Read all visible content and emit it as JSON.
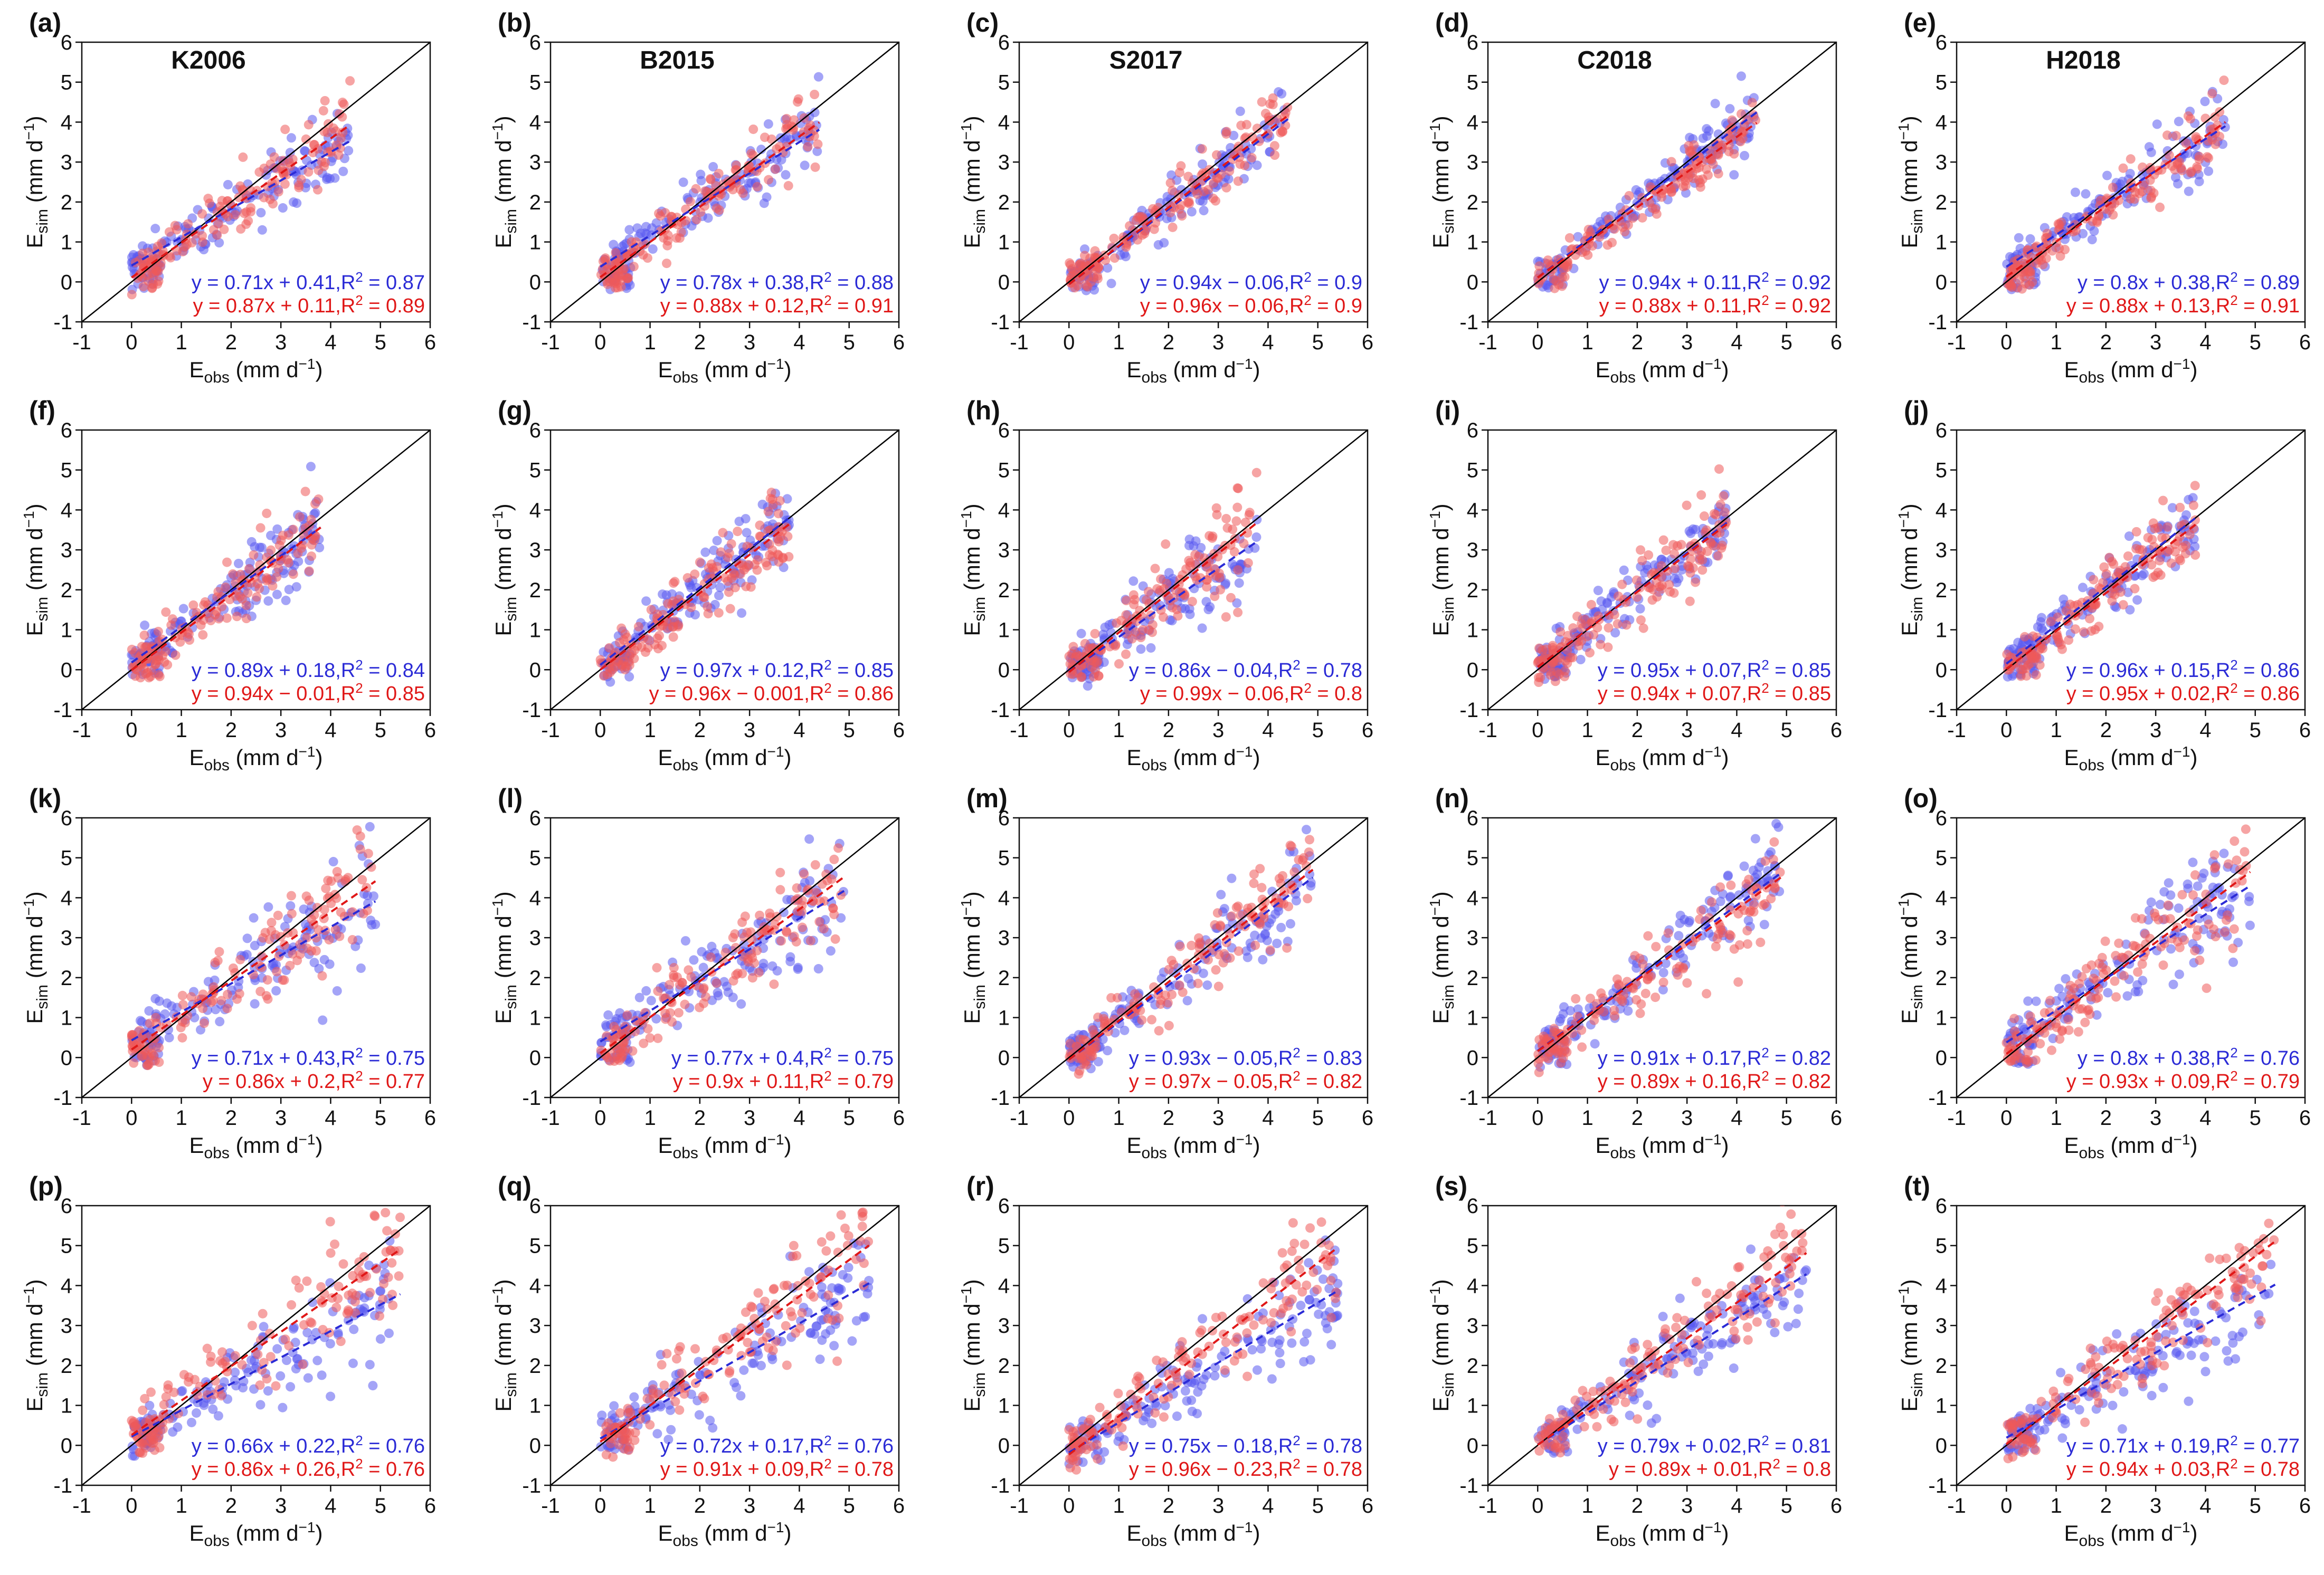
{
  "figure": {
    "x_axis_label": "E",
    "x_axis_sub": "obs",
    "x_axis_unit": " (mm d",
    "y_axis_label": "E",
    "y_axis_sub": "sim",
    "y_axis_unit": " (mm d",
    "unit_exp": "−1",
    "unit_close": ")",
    "colors": {
      "blue": "#2b2bd6",
      "red": "#e01818",
      "blue_fill": "#5a5af0",
      "red_fill": "#ef5a5a",
      "one_to_one": "#000000"
    }
  },
  "chart_data": [
    {
      "type": "scatter",
      "panel": "(a)",
      "title": "K2006",
      "xlim": [
        -1,
        6
      ],
      "ylim": [
        -1,
        6
      ],
      "xticks": [
        "-1",
        "0",
        "1",
        "2",
        "3",
        "4",
        "5",
        "6"
      ],
      "yticks": [
        "-1",
        "0",
        "1",
        "2",
        "3",
        "4",
        "5",
        "6"
      ],
      "x_max": 4.4,
      "series": [
        {
          "name": "blue",
          "slope": 0.71,
          "intercept": 0.41,
          "r2": 0.87,
          "label": "y = 0.71x + 0.41,R",
          "r2_label": " = 0.87"
        },
        {
          "name": "red",
          "slope": 0.87,
          "intercept": 0.11,
          "r2": 0.89,
          "label": "y = 0.87x + 0.11,R",
          "r2_label": " = 0.89"
        }
      ]
    },
    {
      "type": "scatter",
      "panel": "(b)",
      "title": "B2015",
      "xlim": [
        -1,
        6
      ],
      "ylim": [
        -1,
        6
      ],
      "xticks": [
        "-1",
        "0",
        "1",
        "2",
        "3",
        "4",
        "5",
        "6"
      ],
      "yticks": [
        "-1",
        "0",
        "1",
        "2",
        "3",
        "4",
        "5",
        "6"
      ],
      "x_max": 4.4,
      "series": [
        {
          "name": "blue",
          "slope": 0.78,
          "intercept": 0.38,
          "r2": 0.88,
          "label": "y = 0.78x + 0.38,R",
          "r2_label": " = 0.88"
        },
        {
          "name": "red",
          "slope": 0.88,
          "intercept": 0.12,
          "r2": 0.91,
          "label": "y = 0.88x + 0.12,R",
          "r2_label": " = 0.91"
        }
      ]
    },
    {
      "type": "scatter",
      "panel": "(c)",
      "title": "S2017",
      "xlim": [
        -1,
        6
      ],
      "ylim": [
        -1,
        6
      ],
      "xticks": [
        "-1",
        "0",
        "1",
        "2",
        "3",
        "4",
        "5",
        "6"
      ],
      "yticks": [
        "-1",
        "0",
        "1",
        "2",
        "3",
        "4",
        "5",
        "6"
      ],
      "x_max": 4.4,
      "series": [
        {
          "name": "blue",
          "slope": 0.94,
          "intercept": -0.06,
          "r2": 0.9,
          "label": "y = 0.94x − 0.06,R",
          "r2_label": " = 0.9"
        },
        {
          "name": "red",
          "slope": 0.96,
          "intercept": -0.06,
          "r2": 0.9,
          "label": "y = 0.96x − 0.06,R",
          "r2_label": " = 0.9"
        }
      ]
    },
    {
      "type": "scatter",
      "panel": "(d)",
      "title": "C2018",
      "xlim": [
        -1,
        6
      ],
      "ylim": [
        -1,
        6
      ],
      "xticks": [
        "-1",
        "0",
        "1",
        "2",
        "3",
        "4",
        "5",
        "6"
      ],
      "yticks": [
        "-1",
        "0",
        "1",
        "2",
        "3",
        "4",
        "5",
        "6"
      ],
      "x_max": 4.4,
      "series": [
        {
          "name": "blue",
          "slope": 0.94,
          "intercept": 0.11,
          "r2": 0.92,
          "label": "y = 0.94x + 0.11,R",
          "r2_label": " = 0.92"
        },
        {
          "name": "red",
          "slope": 0.88,
          "intercept": 0.11,
          "r2": 0.92,
          "label": "y = 0.88x + 0.11,R",
          "r2_label": " = 0.92"
        }
      ]
    },
    {
      "type": "scatter",
      "panel": "(e)",
      "title": "H2018",
      "xlim": [
        -1,
        6
      ],
      "ylim": [
        -1,
        6
      ],
      "xticks": [
        "-1",
        "0",
        "1",
        "2",
        "3",
        "4",
        "5",
        "6"
      ],
      "yticks": [
        "-1",
        "0",
        "1",
        "2",
        "3",
        "4",
        "5",
        "6"
      ],
      "x_max": 4.4,
      "series": [
        {
          "name": "blue",
          "slope": 0.8,
          "intercept": 0.38,
          "r2": 0.89,
          "label": "y = 0.8x + 0.38,R",
          "r2_label": " = 0.89"
        },
        {
          "name": "red",
          "slope": 0.88,
          "intercept": 0.13,
          "r2": 0.91,
          "label": "y = 0.88x + 0.13,R",
          "r2_label": " = 0.91"
        }
      ]
    },
    {
      "type": "scatter",
      "panel": "(f)",
      "title": "",
      "xlim": [
        -1,
        6
      ],
      "ylim": [
        -1,
        6
      ],
      "xticks": [
        "-1",
        "0",
        "1",
        "2",
        "3",
        "4",
        "5",
        "6"
      ],
      "yticks": [
        "-1",
        "0",
        "1",
        "2",
        "3",
        "4",
        "5",
        "6"
      ],
      "x_max": 3.8,
      "series": [
        {
          "name": "blue",
          "slope": 0.89,
          "intercept": 0.18,
          "r2": 0.84,
          "label": "y = 0.89x + 0.18,R",
          "r2_label": " = 0.84"
        },
        {
          "name": "red",
          "slope": 0.94,
          "intercept": -0.01,
          "r2": 0.85,
          "label": "y = 0.94x − 0.01,R",
          "r2_label": " = 0.85"
        }
      ]
    },
    {
      "type": "scatter",
      "panel": "(g)",
      "title": "",
      "xlim": [
        -1,
        6
      ],
      "ylim": [
        -1,
        6
      ],
      "xticks": [
        "-1",
        "0",
        "1",
        "2",
        "3",
        "4",
        "5",
        "6"
      ],
      "yticks": [
        "-1",
        "0",
        "1",
        "2",
        "3",
        "4",
        "5",
        "6"
      ],
      "x_max": 3.8,
      "series": [
        {
          "name": "blue",
          "slope": 0.97,
          "intercept": 0.12,
          "r2": 0.85,
          "label": "y = 0.97x + 0.12,R",
          "r2_label": " = 0.85"
        },
        {
          "name": "red",
          "slope": 0.96,
          "intercept": -0.001,
          "r2": 0.86,
          "label": "y = 0.96x − 0.001,R",
          "r2_label": " = 0.86"
        }
      ]
    },
    {
      "type": "scatter",
      "panel": "(h)",
      "title": "",
      "xlim": [
        -1,
        6
      ],
      "ylim": [
        -1,
        6
      ],
      "xticks": [
        "-1",
        "0",
        "1",
        "2",
        "3",
        "4",
        "5",
        "6"
      ],
      "yticks": [
        "-1",
        "0",
        "1",
        "2",
        "3",
        "4",
        "5",
        "6"
      ],
      "x_max": 3.8,
      "series": [
        {
          "name": "blue",
          "slope": 0.86,
          "intercept": -0.04,
          "r2": 0.78,
          "label": "y = 0.86x − 0.04,R",
          "r2_label": " = 0.78"
        },
        {
          "name": "red",
          "slope": 0.99,
          "intercept": -0.06,
          "r2": 0.8,
          "label": "y = 0.99x − 0.06,R",
          "r2_label": " = 0.8"
        }
      ]
    },
    {
      "type": "scatter",
      "panel": "(i)",
      "title": "",
      "xlim": [
        -1,
        6
      ],
      "ylim": [
        -1,
        6
      ],
      "xticks": [
        "-1",
        "0",
        "1",
        "2",
        "3",
        "4",
        "5",
        "6"
      ],
      "yticks": [
        "-1",
        "0",
        "1",
        "2",
        "3",
        "4",
        "5",
        "6"
      ],
      "x_max": 3.8,
      "series": [
        {
          "name": "blue",
          "slope": 0.95,
          "intercept": 0.07,
          "r2": 0.85,
          "label": "y = 0.95x + 0.07,R",
          "r2_label": " = 0.85"
        },
        {
          "name": "red",
          "slope": 0.94,
          "intercept": 0.07,
          "r2": 0.85,
          "label": "y = 0.94x + 0.07,R",
          "r2_label": " = 0.85"
        }
      ]
    },
    {
      "type": "scatter",
      "panel": "(j)",
      "title": "",
      "xlim": [
        -1,
        6
      ],
      "ylim": [
        -1,
        6
      ],
      "xticks": [
        "-1",
        "0",
        "1",
        "2",
        "3",
        "4",
        "5",
        "6"
      ],
      "yticks": [
        "-1",
        "0",
        "1",
        "2",
        "3",
        "4",
        "5",
        "6"
      ],
      "x_max": 3.8,
      "series": [
        {
          "name": "blue",
          "slope": 0.96,
          "intercept": 0.15,
          "r2": 0.86,
          "label": "y = 0.96x + 0.15,R",
          "r2_label": " = 0.86"
        },
        {
          "name": "red",
          "slope": 0.95,
          "intercept": 0.02,
          "r2": 0.86,
          "label": "y = 0.95x + 0.02,R",
          "r2_label": " = 0.86"
        }
      ]
    },
    {
      "type": "scatter",
      "panel": "(k)",
      "title": "",
      "xlim": [
        -1,
        6
      ],
      "ylim": [
        -1,
        6
      ],
      "xticks": [
        "-1",
        "0",
        "1",
        "2",
        "3",
        "4",
        "5",
        "6"
      ],
      "yticks": [
        "-1",
        "0",
        "1",
        "2",
        "3",
        "4",
        "5",
        "6"
      ],
      "x_max": 4.9,
      "series": [
        {
          "name": "blue",
          "slope": 0.71,
          "intercept": 0.43,
          "r2": 0.75,
          "label": "y = 0.71x + 0.43,R",
          "r2_label": " = 0.75"
        },
        {
          "name": "red",
          "slope": 0.86,
          "intercept": 0.2,
          "r2": 0.77,
          "label": "y = 0.86x + 0.2,R",
          "r2_label": " = 0.77"
        }
      ]
    },
    {
      "type": "scatter",
      "panel": "(l)",
      "title": "",
      "xlim": [
        -1,
        6
      ],
      "ylim": [
        -1,
        6
      ],
      "xticks": [
        "-1",
        "0",
        "1",
        "2",
        "3",
        "4",
        "5",
        "6"
      ],
      "yticks": [
        "-1",
        "0",
        "1",
        "2",
        "3",
        "4",
        "5",
        "6"
      ],
      "x_max": 4.9,
      "series": [
        {
          "name": "blue",
          "slope": 0.77,
          "intercept": 0.4,
          "r2": 0.75,
          "label": "y = 0.77x + 0.4,R",
          "r2_label": " = 0.75"
        },
        {
          "name": "red",
          "slope": 0.9,
          "intercept": 0.11,
          "r2": 0.79,
          "label": "y = 0.9x + 0.11,R",
          "r2_label": " = 0.79"
        }
      ]
    },
    {
      "type": "scatter",
      "panel": "(m)",
      "title": "",
      "xlim": [
        -1,
        6
      ],
      "ylim": [
        -1,
        6
      ],
      "xticks": [
        "-1",
        "0",
        "1",
        "2",
        "3",
        "4",
        "5",
        "6"
      ],
      "yticks": [
        "-1",
        "0",
        "1",
        "2",
        "3",
        "4",
        "5",
        "6"
      ],
      "x_max": 4.9,
      "series": [
        {
          "name": "blue",
          "slope": 0.93,
          "intercept": -0.05,
          "r2": 0.83,
          "label": "y = 0.93x − 0.05,R",
          "r2_label": " = 0.83"
        },
        {
          "name": "red",
          "slope": 0.97,
          "intercept": -0.05,
          "r2": 0.82,
          "label": "y = 0.97x − 0.05,R",
          "r2_label": " = 0.82"
        }
      ]
    },
    {
      "type": "scatter",
      "panel": "(n)",
      "title": "",
      "xlim": [
        -1,
        6
      ],
      "ylim": [
        -1,
        6
      ],
      "xticks": [
        "-1",
        "0",
        "1",
        "2",
        "3",
        "4",
        "5",
        "6"
      ],
      "yticks": [
        "-1",
        "0",
        "1",
        "2",
        "3",
        "4",
        "5",
        "6"
      ],
      "x_max": 4.9,
      "series": [
        {
          "name": "blue",
          "slope": 0.91,
          "intercept": 0.17,
          "r2": 0.82,
          "label": "y = 0.91x + 0.17,R",
          "r2_label": " = 0.82"
        },
        {
          "name": "red",
          "slope": 0.89,
          "intercept": 0.16,
          "r2": 0.82,
          "label": "y = 0.89x + 0.16,R",
          "r2_label": " = 0.82"
        }
      ]
    },
    {
      "type": "scatter",
      "panel": "(o)",
      "title": "",
      "xlim": [
        -1,
        6
      ],
      "ylim": [
        -1,
        6
      ],
      "xticks": [
        "-1",
        "0",
        "1",
        "2",
        "3",
        "4",
        "5",
        "6"
      ],
      "yticks": [
        "-1",
        "0",
        "1",
        "2",
        "3",
        "4",
        "5",
        "6"
      ],
      "x_max": 4.9,
      "series": [
        {
          "name": "blue",
          "slope": 0.8,
          "intercept": 0.38,
          "r2": 0.76,
          "label": "y = 0.8x + 0.38,R",
          "r2_label": " = 0.76"
        },
        {
          "name": "red",
          "slope": 0.93,
          "intercept": 0.09,
          "r2": 0.79,
          "label": "y = 0.93x + 0.09,R",
          "r2_label": " = 0.79"
        }
      ]
    },
    {
      "type": "scatter",
      "panel": "(p)",
      "title": "",
      "xlim": [
        -1,
        6
      ],
      "ylim": [
        -1,
        6
      ],
      "xticks": [
        "-1",
        "0",
        "1",
        "2",
        "3",
        "4",
        "5",
        "6"
      ],
      "yticks": [
        "-1",
        "0",
        "1",
        "2",
        "3",
        "4",
        "5",
        "6"
      ],
      "x_max": 5.4,
      "series": [
        {
          "name": "blue",
          "slope": 0.66,
          "intercept": 0.22,
          "r2": 0.76,
          "label": "y = 0.66x + 0.22,R",
          "r2_label": " = 0.76"
        },
        {
          "name": "red",
          "slope": 0.86,
          "intercept": 0.26,
          "r2": 0.76,
          "label": "y = 0.86x + 0.26,R",
          "r2_label": " = 0.76"
        }
      ]
    },
    {
      "type": "scatter",
      "panel": "(q)",
      "title": "",
      "xlim": [
        -1,
        6
      ],
      "ylim": [
        -1,
        6
      ],
      "xticks": [
        "-1",
        "0",
        "1",
        "2",
        "3",
        "4",
        "5",
        "6"
      ],
      "yticks": [
        "-1",
        "0",
        "1",
        "2",
        "3",
        "4",
        "5",
        "6"
      ],
      "x_max": 5.4,
      "series": [
        {
          "name": "blue",
          "slope": 0.72,
          "intercept": 0.17,
          "r2": 0.76,
          "label": "y = 0.72x + 0.17,R",
          "r2_label": " = 0.76"
        },
        {
          "name": "red",
          "slope": 0.91,
          "intercept": 0.09,
          "r2": 0.78,
          "label": "y = 0.91x + 0.09,R",
          "r2_label": " = 0.78"
        }
      ]
    },
    {
      "type": "scatter",
      "panel": "(r)",
      "title": "",
      "xlim": [
        -1,
        6
      ],
      "ylim": [
        -1,
        6
      ],
      "xticks": [
        "-1",
        "0",
        "1",
        "2",
        "3",
        "4",
        "5",
        "6"
      ],
      "yticks": [
        "-1",
        "0",
        "1",
        "2",
        "3",
        "4",
        "5",
        "6"
      ],
      "x_max": 5.4,
      "series": [
        {
          "name": "blue",
          "slope": 0.75,
          "intercept": -0.18,
          "r2": 0.78,
          "label": "y = 0.75x − 0.18,R",
          "r2_label": " = 0.78"
        },
        {
          "name": "red",
          "slope": 0.96,
          "intercept": -0.23,
          "r2": 0.78,
          "label": "y = 0.96x − 0.23,R",
          "r2_label": " = 0.78"
        }
      ]
    },
    {
      "type": "scatter",
      "panel": "(s)",
      "title": "",
      "xlim": [
        -1,
        6
      ],
      "ylim": [
        -1,
        6
      ],
      "xticks": [
        "-1",
        "0",
        "1",
        "2",
        "3",
        "4",
        "5",
        "6"
      ],
      "yticks": [
        "-1",
        "0",
        "1",
        "2",
        "3",
        "4",
        "5",
        "6"
      ],
      "x_max": 5.4,
      "series": [
        {
          "name": "blue",
          "slope": 0.79,
          "intercept": 0.02,
          "r2": 0.81,
          "label": "y = 0.79x + 0.02,R",
          "r2_label": " = 0.81"
        },
        {
          "name": "red",
          "slope": 0.89,
          "intercept": 0.01,
          "r2": 0.8,
          "label": "y = 0.89x + 0.01,R",
          "r2_label": " = 0.8"
        }
      ]
    },
    {
      "type": "scatter",
      "panel": "(t)",
      "title": "",
      "xlim": [
        -1,
        6
      ],
      "ylim": [
        -1,
        6
      ],
      "xticks": [
        "-1",
        "0",
        "1",
        "2",
        "3",
        "4",
        "5",
        "6"
      ],
      "yticks": [
        "-1",
        "0",
        "1",
        "2",
        "3",
        "4",
        "5",
        "6"
      ],
      "x_max": 5.4,
      "series": [
        {
          "name": "blue",
          "slope": 0.71,
          "intercept": 0.19,
          "r2": 0.77,
          "label": "y = 0.71x + 0.19,R",
          "r2_label": " = 0.77"
        },
        {
          "name": "red",
          "slope": 0.94,
          "intercept": 0.03,
          "r2": 0.78,
          "label": "y = 0.94x + 0.03,R",
          "r2_label": " = 0.78"
        }
      ]
    }
  ]
}
